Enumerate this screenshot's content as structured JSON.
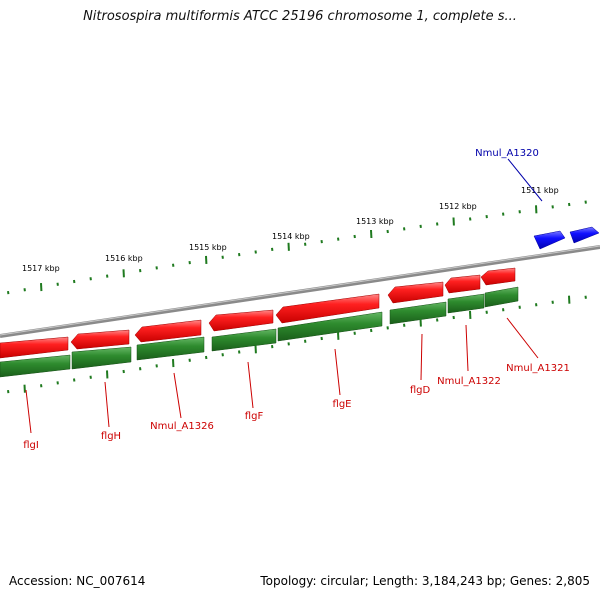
{
  "title": "Nitrosospira multiformis ATCC 25196 chromosome 1, complete s...",
  "footer": {
    "accession": "Accession: NC_007614",
    "stats": "Topology: circular; Length: 3,184,243 bp; Genes: 2,805"
  },
  "colors": {
    "backbone": "#8a8a8a",
    "cds_red": "#ff0000",
    "cds_green": "#2a8a2a",
    "cds_blue": "#0000ff",
    "label_red": "#cc0000",
    "label_blue": "#0000aa",
    "tick_green": "#1f7a1f"
  },
  "scale_labels": [
    "1517 kbp",
    "1516 kbp",
    "1515 kbp",
    "1514 kbp",
    "1513 kbp",
    "1512 kbp",
    "1511 kbp"
  ],
  "gene_labels": [
    "flgI",
    "flgH",
    "Nmul_A1326",
    "flgF",
    "flgE",
    "flgD",
    "Nmul_A1322",
    "Nmul_A1321",
    "Nmul_A1320"
  ]
}
